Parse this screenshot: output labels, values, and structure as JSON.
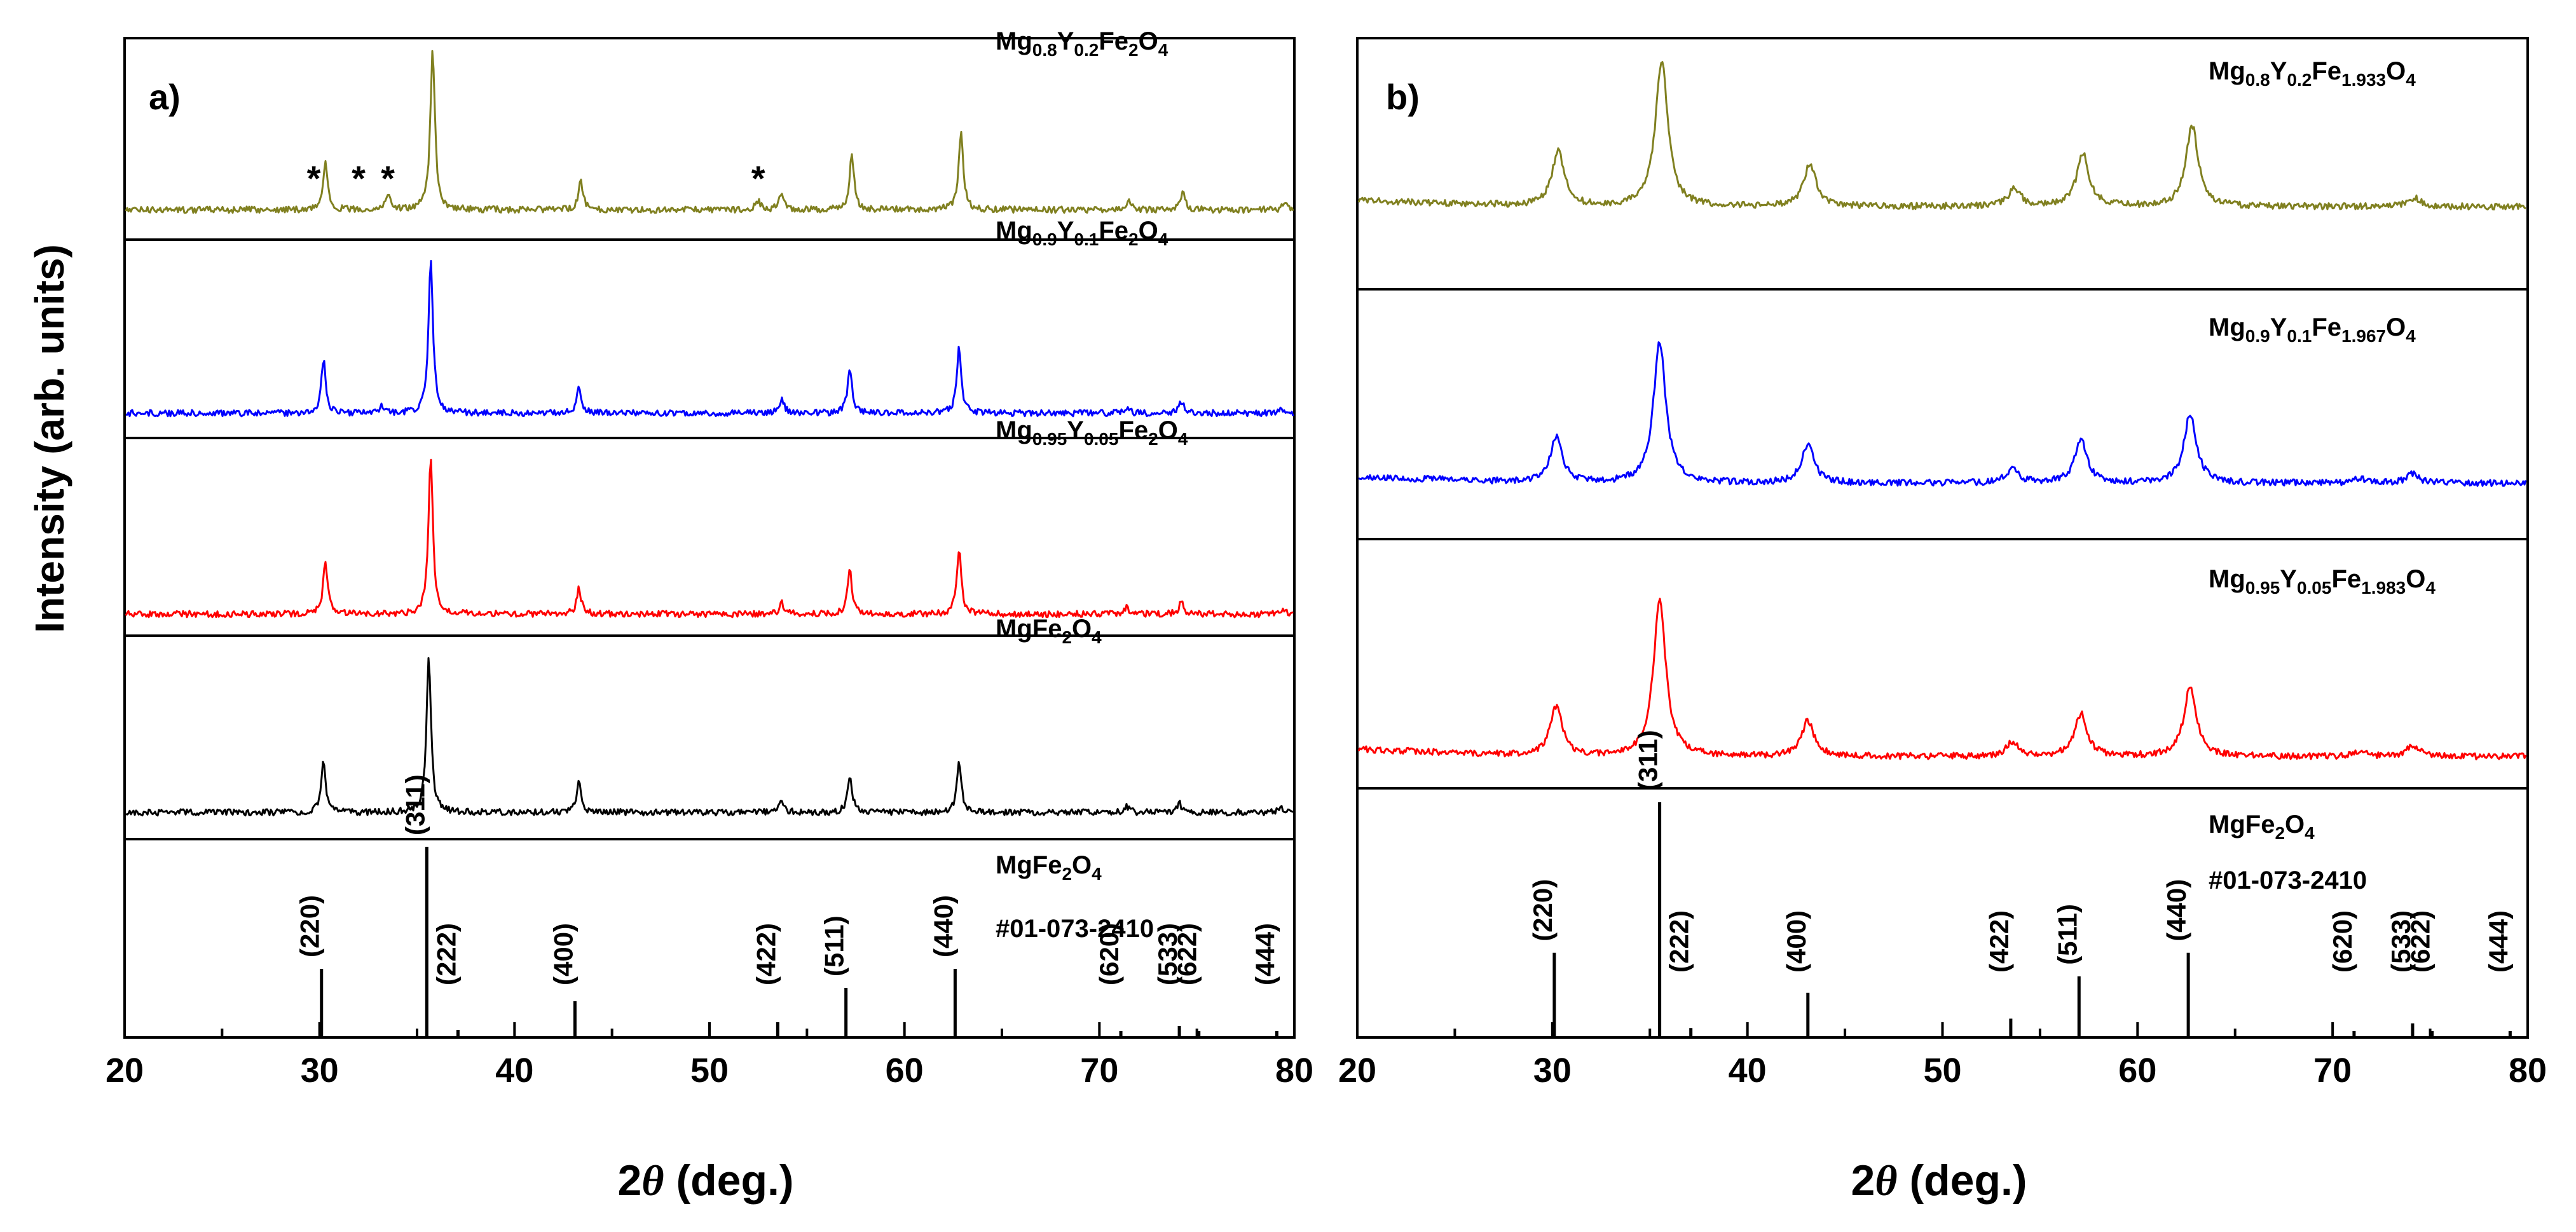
{
  "figure": {
    "ylabel": "Intensity (arb. units)",
    "xlabel_prefix": "2",
    "xlabel_theta": "θ",
    "xlabel_suffix": " (deg.)",
    "xticks": [
      "20",
      "30",
      "40",
      "50",
      "60",
      "70",
      "80"
    ]
  },
  "chart_data": [
    {
      "type": "line",
      "panel_label": "a)",
      "xlabel": "2θ (deg.)",
      "ylabel": "Intensity (arb. units)",
      "xlim": [
        20,
        80
      ],
      "series": [
        {
          "name": "Mg0.8Y0.2Fe2O4",
          "label": {
            "pre": "Mg",
            "parts": [
              [
                "0.8",
                "Y"
              ],
              [
                "0.2",
                "Fe"
              ],
              [
                "2",
                "O"
              ],
              [
                "4",
                ""
              ]
            ]
          },
          "color": "#808020",
          "peaks": [
            [
              30.3,
              0.3
            ],
            [
              33.5,
              0.1
            ],
            [
              35.8,
              1.0
            ],
            [
              43.4,
              0.18
            ],
            [
              52.5,
              0.06
            ],
            [
              53.7,
              0.11
            ],
            [
              57.3,
              0.34
            ],
            [
              62.9,
              0.5
            ],
            [
              71.5,
              0.06
            ],
            [
              74.3,
              0.11
            ],
            [
              79.5,
              0.04
            ]
          ],
          "markers": [
            {
              "text": "*",
              "x": 29.7
            },
            {
              "text": "*",
              "x": 32.0
            },
            {
              "text": "*",
              "x": 33.5
            },
            {
              "text": "*",
              "x": 52.5
            }
          ]
        },
        {
          "name": "Mg0.9Y0.1Fe2O4",
          "label": {
            "pre": "Mg",
            "parts": [
              [
                "0.9",
                "Y"
              ],
              [
                "0.1",
                "Fe"
              ],
              [
                "2",
                "O"
              ],
              [
                "4",
                ""
              ]
            ]
          },
          "color": "#0000ff",
          "peaks": [
            [
              30.2,
              0.35
            ],
            [
              33.2,
              0.04
            ],
            [
              35.7,
              1.0
            ],
            [
              43.3,
              0.17
            ],
            [
              53.7,
              0.1
            ],
            [
              57.2,
              0.29
            ],
            [
              62.8,
              0.43
            ],
            [
              71.4,
              0.04
            ],
            [
              74.2,
              0.08
            ],
            [
              79.4,
              0.03
            ]
          ],
          "markers": []
        },
        {
          "name": "Mg0.95Y0.05Fe2O4",
          "label": {
            "pre": "Mg",
            "parts": [
              [
                "0.95",
                "Y"
              ],
              [
                "0.05",
                "Fe"
              ],
              [
                "2",
                "O"
              ],
              [
                "4",
                ""
              ]
            ]
          },
          "color": "#ff0000",
          "peaks": [
            [
              30.3,
              0.34
            ],
            [
              35.7,
              1.0
            ],
            [
              43.3,
              0.17
            ],
            [
              53.7,
              0.07
            ],
            [
              57.2,
              0.28
            ],
            [
              62.8,
              0.42
            ],
            [
              71.4,
              0.04
            ],
            [
              74.2,
              0.08
            ],
            [
              79.4,
              0.03
            ]
          ],
          "markers": []
        },
        {
          "name": "MgFe2O4",
          "label": {
            "pre": "MgFe",
            "parts": [
              [
                "2",
                "O"
              ],
              [
                "4",
                ""
              ]
            ]
          },
          "color": "#000000",
          "peaks": [
            [
              30.2,
              0.33
            ],
            [
              35.6,
              1.0
            ],
            [
              43.3,
              0.19
            ],
            [
              53.7,
              0.08
            ],
            [
              57.2,
              0.24
            ],
            [
              62.8,
              0.33
            ],
            [
              71.4,
              0.04
            ],
            [
              74.1,
              0.06
            ],
            [
              79.3,
              0.03
            ]
          ],
          "markers": []
        }
      ],
      "reference": {
        "name": "MgFe2O4",
        "label": {
          "pre": "MgFe",
          "parts": [
            [
              "2",
              "O"
            ],
            [
              "4",
              ""
            ]
          ]
        },
        "card": "#01-073-2410",
        "lines": [
          {
            "hkl": "(220)",
            "x": 30.1,
            "intensity": 0.36
          },
          {
            "hkl": "(311)",
            "x": 35.5,
            "intensity": 1.0
          },
          {
            "hkl": "(222)",
            "x": 37.1,
            "intensity": 0.04
          },
          {
            "hkl": "(400)",
            "x": 43.1,
            "intensity": 0.19
          },
          {
            "hkl": "(422)",
            "x": 53.5,
            "intensity": 0.08
          },
          {
            "hkl": "(511)",
            "x": 57.0,
            "intensity": 0.26
          },
          {
            "hkl": "(440)",
            "x": 62.6,
            "intensity": 0.36
          },
          {
            "hkl": "(620)",
            "x": 71.1,
            "intensity": 0.02
          },
          {
            "hkl": "(533)",
            "x": 74.1,
            "intensity": 0.06
          },
          {
            "hkl": "(622)",
            "x": 75.1,
            "intensity": 0.02
          },
          {
            "hkl": "(444)",
            "x": 79.1,
            "intensity": 0.02
          }
        ]
      }
    },
    {
      "type": "line",
      "panel_label": "b)",
      "xlabel": "2θ (deg.)",
      "ylabel": "Intensity (arb. units)",
      "xlim": [
        20,
        80
      ],
      "series": [
        {
          "name": "Mg0.8Y0.2Fe1.933O4",
          "label": {
            "pre": "Mg",
            "parts": [
              [
                "0.8",
                "Y"
              ],
              [
                "0.2",
                "Fe"
              ],
              [
                "1.933",
                "O"
              ],
              [
                "4",
                ""
              ]
            ]
          },
          "color": "#808020",
          "peaks": [
            [
              30.3,
              0.38
            ],
            [
              35.6,
              1.0
            ],
            [
              43.2,
              0.29
            ],
            [
              53.7,
              0.12
            ],
            [
              57.2,
              0.36
            ],
            [
              62.8,
              0.55
            ],
            [
              74.2,
              0.06
            ]
          ],
          "markers": []
        },
        {
          "name": "Mg0.9Y0.1Fe1.967O4",
          "label": {
            "pre": "Mg",
            "parts": [
              [
                "0.9",
                "Y"
              ],
              [
                "0.1",
                "Fe"
              ],
              [
                "1.967",
                "O"
              ],
              [
                "4",
                ""
              ]
            ]
          },
          "color": "#0000ff",
          "peaks": [
            [
              30.2,
              0.29
            ],
            [
              35.5,
              0.9
            ],
            [
              43.1,
              0.25
            ],
            [
              53.6,
              0.09
            ],
            [
              57.1,
              0.28
            ],
            [
              62.7,
              0.45
            ],
            [
              71.4,
              0.03
            ],
            [
              74.1,
              0.06
            ]
          ],
          "markers": []
        },
        {
          "name": "Mg0.95Y0.05Fe1.983O4",
          "label": {
            "pre": "Mg",
            "parts": [
              [
                "0.95",
                "Y"
              ],
              [
                "0.05",
                "Fe"
              ],
              [
                "1.983",
                "O"
              ],
              [
                "4",
                ""
              ]
            ]
          },
          "color": "#ff0000",
          "peaks": [
            [
              30.2,
              0.28
            ],
            [
              35.5,
              0.88
            ],
            [
              43.1,
              0.2
            ],
            [
              53.6,
              0.08
            ],
            [
              57.1,
              0.24
            ],
            [
              62.7,
              0.4
            ],
            [
              71.4,
              0.03
            ],
            [
              74.1,
              0.06
            ]
          ],
          "markers": []
        }
      ],
      "reference": {
        "name": "MgFe2O4",
        "label": {
          "pre": "MgFe",
          "parts": [
            [
              "2",
              "O"
            ],
            [
              "4",
              ""
            ]
          ]
        },
        "card": "#01-073-2410",
        "lines": [
          {
            "hkl": "(220)",
            "x": 30.1,
            "intensity": 0.36
          },
          {
            "hkl": "(311)",
            "x": 35.5,
            "intensity": 1.0
          },
          {
            "hkl": "(222)",
            "x": 37.1,
            "intensity": 0.04
          },
          {
            "hkl": "(400)",
            "x": 43.1,
            "intensity": 0.19
          },
          {
            "hkl": "(422)",
            "x": 53.5,
            "intensity": 0.08
          },
          {
            "hkl": "(511)",
            "x": 57.0,
            "intensity": 0.26
          },
          {
            "hkl": "(440)",
            "x": 62.6,
            "intensity": 0.36
          },
          {
            "hkl": "(620)",
            "x": 71.1,
            "intensity": 0.02
          },
          {
            "hkl": "(533)",
            "x": 74.1,
            "intensity": 0.06
          },
          {
            "hkl": "(622)",
            "x": 75.1,
            "intensity": 0.02
          },
          {
            "hkl": "(444)",
            "x": 79.1,
            "intensity": 0.02
          }
        ]
      }
    }
  ]
}
